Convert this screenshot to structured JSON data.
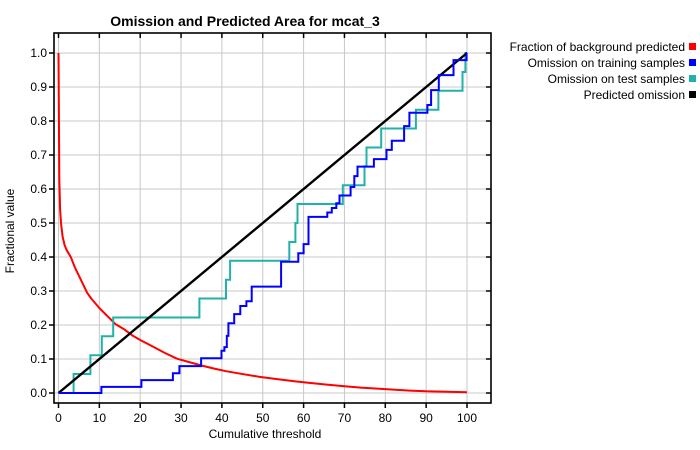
{
  "title": "Omission and Predicted Area for mcat_3",
  "x_axis": {
    "label": "Cumulative threshold",
    "min": 0,
    "max": 100,
    "ticks": [
      {
        "v": 0,
        "label": "0"
      },
      {
        "v": 10,
        "label": "10"
      },
      {
        "v": 20,
        "label": "20"
      },
      {
        "v": 30,
        "label": "30"
      },
      {
        "v": 40,
        "label": "40"
      },
      {
        "v": 50,
        "label": "50"
      },
      {
        "v": 60,
        "label": "60"
      },
      {
        "v": 70,
        "label": "70"
      },
      {
        "v": 80,
        "label": "80"
      },
      {
        "v": 90,
        "label": "90"
      },
      {
        "v": 100,
        "label": "100"
      }
    ]
  },
  "y_axis": {
    "label": "Fractional value",
    "min": 0,
    "max": 1,
    "ticks": [
      {
        "v": 0.0,
        "label": "0.0"
      },
      {
        "v": 0.1,
        "label": "0.1"
      },
      {
        "v": 0.2,
        "label": "0.2"
      },
      {
        "v": 0.3,
        "label": "0.3"
      },
      {
        "v": 0.4,
        "label": "0.4"
      },
      {
        "v": 0.5,
        "label": "0.5"
      },
      {
        "v": 0.6,
        "label": "0.6"
      },
      {
        "v": 0.7,
        "label": "0.7"
      },
      {
        "v": 0.8,
        "label": "0.8"
      },
      {
        "v": 0.9,
        "label": "0.9"
      },
      {
        "v": 1.0,
        "label": "1.0"
      }
    ]
  },
  "legend": [
    {
      "label": "Fraction of background predicted",
      "color": "#ff0000"
    },
    {
      "label": "Omission on training samples",
      "color": "#0000ff"
    },
    {
      "label": "Omission on test samples",
      "color": "#20b2aa"
    },
    {
      "label": "Predicted omission",
      "color": "#000000"
    }
  ],
  "plot_colors": {
    "background": "#ffffff",
    "grid": "#c8c8c8",
    "axis": "#000000"
  },
  "chart_data": {
    "type": "line",
    "title": "Omission and Predicted Area for mcat_3",
    "xlabel": "Cumulative threshold",
    "ylabel": "Fractional value",
    "xlim": [
      0,
      100
    ],
    "ylim": [
      0,
      1
    ],
    "grid": true,
    "legend_position": "top-right-outside",
    "series": [
      {
        "name": "Fraction of background predicted",
        "color": "#ff0000",
        "style": "curve",
        "points": [
          [
            0,
            1.0
          ],
          [
            0.1,
            0.82
          ],
          [
            0.2,
            0.63
          ],
          [
            0.4,
            0.54
          ],
          [
            0.6,
            0.5
          ],
          [
            1,
            0.46
          ],
          [
            1.5,
            0.435
          ],
          [
            2,
            0.42
          ],
          [
            3,
            0.4
          ],
          [
            4,
            0.37
          ],
          [
            5,
            0.345
          ],
          [
            6,
            0.32
          ],
          [
            7,
            0.295
          ],
          [
            8,
            0.278
          ],
          [
            10,
            0.25
          ],
          [
            12,
            0.226
          ],
          [
            14,
            0.202
          ],
          [
            16,
            0.188
          ],
          [
            18,
            0.17
          ],
          [
            20,
            0.156
          ],
          [
            23,
            0.137
          ],
          [
            26,
            0.118
          ],
          [
            29,
            0.101
          ],
          [
            32,
            0.091
          ],
          [
            35,
            0.081
          ],
          [
            38,
            0.072
          ],
          [
            41,
            0.064
          ],
          [
            44,
            0.058
          ],
          [
            49,
            0.048
          ],
          [
            54,
            0.04
          ],
          [
            58,
            0.034
          ],
          [
            62,
            0.029
          ],
          [
            66,
            0.024
          ],
          [
            70,
            0.02
          ],
          [
            74,
            0.016
          ],
          [
            78,
            0.013
          ],
          [
            82,
            0.01
          ],
          [
            86,
            0.007
          ],
          [
            90,
            0.005
          ],
          [
            94,
            0.004
          ],
          [
            100,
            0.002
          ]
        ]
      },
      {
        "name": "Omission on test samples",
        "color": "#20b2aa",
        "style": "step",
        "start": [
          0,
          0
        ],
        "steps": [
          [
            3.7,
            0.056
          ],
          [
            7.8,
            0.111
          ],
          [
            10.6,
            0.167
          ],
          [
            13.4,
            0.222
          ],
          [
            34.5,
            0.278
          ],
          [
            41.0,
            0.333
          ],
          [
            42.0,
            0.389
          ],
          [
            56.5,
            0.444
          ],
          [
            58.0,
            0.5
          ],
          [
            58.5,
            0.556
          ],
          [
            69.6,
            0.611
          ],
          [
            74.9,
            0.667
          ],
          [
            75.4,
            0.722
          ],
          [
            79.0,
            0.778
          ],
          [
            87.5,
            0.833
          ],
          [
            93.0,
            0.889
          ],
          [
            98.9,
            0.944
          ],
          [
            99.6,
            1.0
          ]
        ],
        "end": [
          100,
          1.0
        ]
      },
      {
        "name": "Predicted omission",
        "color": "#000000",
        "style": "line",
        "points": [
          [
            0,
            0
          ],
          [
            100,
            1.0
          ]
        ]
      },
      {
        "name": "Omission on training samples",
        "color": "#0000ff",
        "style": "step",
        "start": [
          0,
          0
        ],
        "steps": [
          [
            10.5,
            0.018
          ],
          [
            20.3,
            0.038
          ],
          [
            28.0,
            0.058
          ],
          [
            29.6,
            0.079
          ],
          [
            34.9,
            0.102
          ],
          [
            39.9,
            0.124
          ],
          [
            40.6,
            0.135
          ],
          [
            41.2,
            0.168
          ],
          [
            41.6,
            0.205
          ],
          [
            43.0,
            0.232
          ],
          [
            44.5,
            0.256
          ],
          [
            46.0,
            0.27
          ],
          [
            47.3,
            0.313
          ],
          [
            54.5,
            0.386
          ],
          [
            58.7,
            0.411
          ],
          [
            60.0,
            0.438
          ],
          [
            61.2,
            0.518
          ],
          [
            65.8,
            0.531
          ],
          [
            66.9,
            0.544
          ],
          [
            68.0,
            0.558
          ],
          [
            68.8,
            0.581
          ],
          [
            71.5,
            0.606
          ],
          [
            72.4,
            0.638
          ],
          [
            73.2,
            0.666
          ],
          [
            77.2,
            0.688
          ],
          [
            80.3,
            0.715
          ],
          [
            81.6,
            0.742
          ],
          [
            84.6,
            0.785
          ],
          [
            85.9,
            0.824
          ],
          [
            90.3,
            0.847
          ],
          [
            91.2,
            0.891
          ],
          [
            93.1,
            0.935
          ],
          [
            96.7,
            0.979
          ],
          [
            99.9,
            1.0
          ]
        ],
        "end": [
          100,
          1.0
        ]
      }
    ]
  }
}
